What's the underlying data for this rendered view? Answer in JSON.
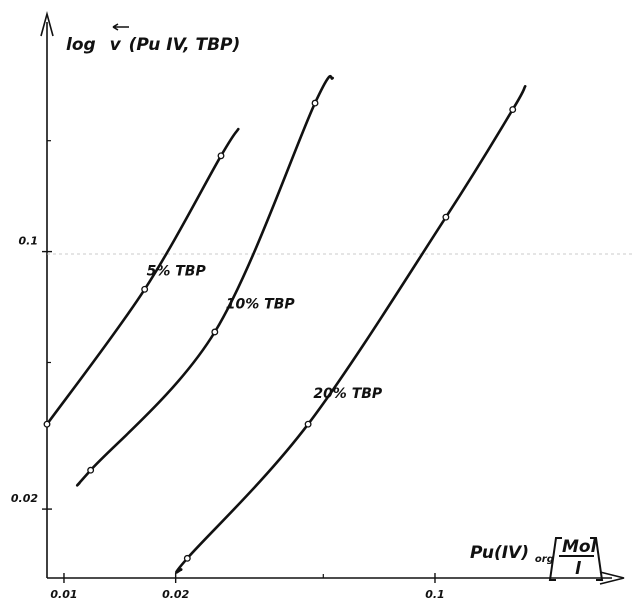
{
  "chart_data": {
    "type": "line",
    "title": "",
    "ylabel_main": "log",
    "ylabel_v": "v",
    "ylabel_rest": "(Pu IV, TBP)",
    "xlabel_main": "Pu(IV)",
    "xlabel_sub": "org",
    "xlabel_unit_num": "Mol",
    "xlabel_unit_den": "l",
    "xscale": "log",
    "yscale": "log",
    "xlim": [
      0.009,
      0.3
    ],
    "ylim": [
      0.013,
      0.42
    ],
    "grid": false,
    "x_ticks": [
      {
        "value": 0.01,
        "label": "0.01"
      },
      {
        "value": 0.02,
        "label": "0.02"
      },
      {
        "value": 0.1,
        "label": "0.1"
      }
    ],
    "x_minor_ticks": [
      0.05
    ],
    "y_ticks": [
      {
        "value": 0.02,
        "label": "0.02"
      },
      {
        "value": 0.1,
        "label": "0.1"
      }
    ],
    "y_minor_ticks": [
      0.05,
      0.2
    ],
    "series": [
      {
        "name": "5% TBP",
        "points": [
          [
            0.009,
            0.034
          ],
          [
            0.0165,
            0.079
          ],
          [
            0.0265,
            0.182
          ]
        ],
        "curve": [
          [
            0.009,
            0.034
          ],
          [
            0.0165,
            0.079
          ],
          [
            0.0265,
            0.182
          ],
          [
            0.0295,
            0.215
          ]
        ],
        "label_at": [
          0.0167,
          0.086
        ]
      },
      {
        "name": "10% TBP",
        "points": [
          [
            0.0118,
            0.0255
          ],
          [
            0.0255,
            0.0605
          ],
          [
            0.0475,
            0.253
          ]
        ],
        "curve": [
          [
            0.011,
            0.0235
          ],
          [
            0.0118,
            0.0255
          ],
          [
            0.0255,
            0.0605
          ],
          [
            0.0475,
            0.253
          ],
          [
            0.053,
            0.296
          ]
        ],
        "label_at": [
          0.0273,
          0.07
        ]
      },
      {
        "name": "20% TBP",
        "points": [
          [
            0.0215,
            0.0147
          ],
          [
            0.0455,
            0.034
          ],
          [
            0.107,
            0.124
          ],
          [
            0.162,
            0.243
          ]
        ],
        "curve": [
          [
            0.0207,
            0.0137
          ],
          [
            0.0215,
            0.0147
          ],
          [
            0.0455,
            0.034
          ],
          [
            0.107,
            0.124
          ],
          [
            0.162,
            0.243
          ],
          [
            0.175,
            0.281
          ]
        ],
        "label_at": [
          0.047,
          0.04
        ]
      }
    ]
  }
}
